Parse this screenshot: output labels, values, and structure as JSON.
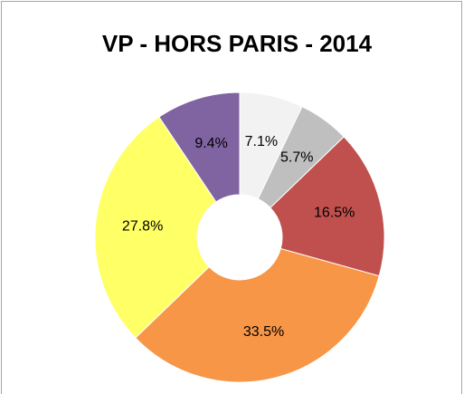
{
  "chart_data": {
    "type": "donut",
    "title": "VP - HORS PARIS - 2014",
    "values": [
      7.1,
      5.7,
      16.5,
      33.5,
      27.8,
      9.4
    ],
    "value_labels": [
      "7.1%",
      "5.7%",
      "16.5%",
      "33.5%",
      "27.8%",
      "9.4%"
    ],
    "colors": [
      "#f2f2f2",
      "#bfbfbf",
      "#c0504d",
      "#f79646",
      "#ffff66",
      "#8064a2"
    ]
  }
}
